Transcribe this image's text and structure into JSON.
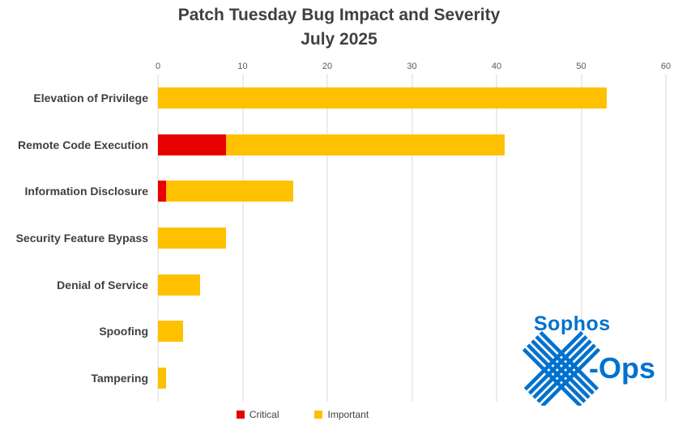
{
  "title": {
    "line1": "Patch Tuesday Bug Impact and Severity",
    "line2": "July 2025"
  },
  "chart_data": {
    "type": "bar",
    "orientation": "horizontal-stacked",
    "title": "Patch Tuesday Bug Impact and Severity July 2025",
    "categories": [
      "Elevation of Privilege",
      "Remote Code Execution",
      "Information Disclosure",
      "Security Feature Bypass",
      "Denial of Service",
      "Spoofing",
      "Tampering"
    ],
    "series": [
      {
        "name": "Critical",
        "color": "#e60000",
        "values": [
          0,
          8,
          1,
          0,
          0,
          0,
          0
        ]
      },
      {
        "name": "Important",
        "color": "#ffc000",
        "values": [
          53,
          33,
          15,
          8,
          5,
          3,
          1
        ]
      }
    ],
    "totals": [
      53,
      41,
      16,
      8,
      5,
      3,
      1
    ],
    "xlabel": "",
    "ylabel": "",
    "xlim": [
      0,
      60
    ],
    "xticks": [
      0,
      10,
      20,
      30,
      40,
      50,
      60
    ],
    "grid": true,
    "legend_position": "bottom"
  },
  "legend": {
    "items": [
      {
        "label": "Critical",
        "color": "#e60000"
      },
      {
        "label": "Important",
        "color": "#ffc000"
      }
    ]
  },
  "logo": {
    "sophos": "Sophos",
    "ops": "-Ops"
  }
}
